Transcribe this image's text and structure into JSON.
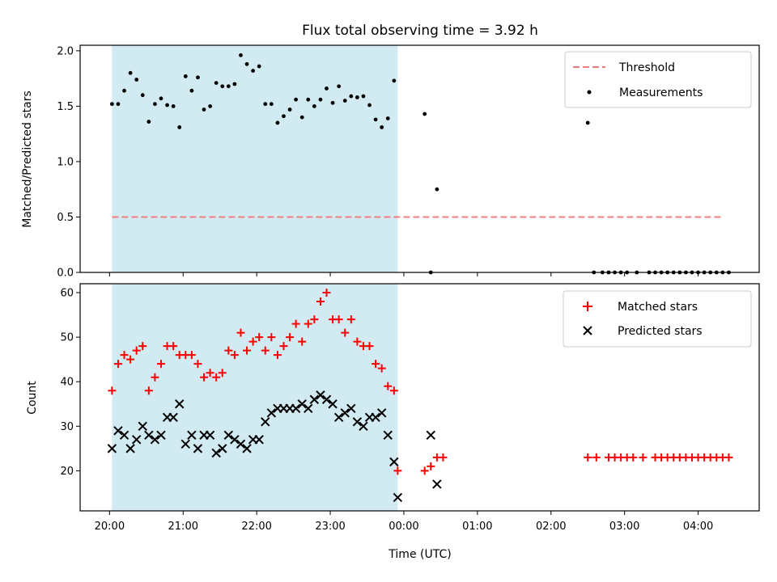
{
  "figure": {
    "title": "Flux total observing time = 3.92 h",
    "xlabel": "Time (UTC)"
  },
  "colors": {
    "shade": "#add8e6",
    "threshold": "#f08080",
    "measurement": "#000000",
    "matched": "#ff0000",
    "predicted": "#000000"
  },
  "chart_data": [
    {
      "type": "scatter",
      "ylabel": "Matched/Predicted stars",
      "xlim": [
        19.6,
        28.83
      ],
      "ylim": [
        0,
        2.05
      ],
      "xticks": [
        20,
        21,
        22,
        23,
        24,
        25,
        26,
        27,
        28
      ],
      "yticks": [
        {
          "v": 0,
          "label": "0.0"
        },
        {
          "v": 0.5,
          "label": "0.5"
        },
        {
          "v": 1.0,
          "label": "1.0"
        },
        {
          "v": 1.5,
          "label": "1.5"
        },
        {
          "v": 2.0,
          "label": "2.0"
        }
      ],
      "shaded_interval": [
        "20:02",
        "23:55"
      ],
      "legend": {
        "placement": "upper right",
        "entries": [
          "Threshold",
          "Measurements"
        ]
      },
      "series": [
        {
          "name": "Threshold",
          "kind": "dashed-line",
          "x": [
            "20:02",
            "04:20"
          ],
          "y": [
            0.5,
            0.5
          ]
        },
        {
          "name": "Measurements",
          "kind": "points",
          "x": [
            "20:02",
            "20:07",
            "20:12",
            "20:17",
            "20:22",
            "20:27",
            "20:32",
            "20:37",
            "20:42",
            "20:47",
            "20:52",
            "20:57",
            "21:02",
            "21:07",
            "21:12",
            "21:17",
            "21:22",
            "21:27",
            "21:32",
            "21:37",
            "21:42",
            "21:47",
            "21:52",
            "21:57",
            "22:02",
            "22:07",
            "22:12",
            "22:17",
            "22:22",
            "22:27",
            "22:32",
            "22:37",
            "22:42",
            "22:47",
            "22:52",
            "22:57",
            "23:02",
            "23:07",
            "23:12",
            "23:17",
            "23:22",
            "23:27",
            "23:32",
            "23:37",
            "23:42",
            "23:47",
            "23:52",
            "00:17",
            "00:22",
            "00:27",
            "02:30",
            "02:35",
            "02:42",
            "02:47",
            "02:52",
            "02:57",
            "03:02",
            "03:10",
            "03:20",
            "03:25",
            "03:30",
            "03:35",
            "03:40",
            "03:45",
            "03:50",
            "03:55",
            "04:00",
            "04:05",
            "04:10",
            "04:15",
            "04:20",
            "04:25"
          ],
          "y": [
            1.52,
            1.52,
            1.64,
            1.8,
            1.74,
            1.6,
            1.36,
            1.52,
            1.57,
            1.51,
            1.5,
            1.31,
            1.77,
            1.64,
            1.76,
            1.47,
            1.5,
            1.71,
            1.68,
            1.68,
            1.7,
            1.96,
            1.88,
            1.82,
            1.86,
            1.52,
            1.52,
            1.35,
            1.41,
            1.47,
            1.56,
            1.4,
            1.56,
            1.5,
            1.56,
            1.66,
            1.53,
            1.68,
            1.55,
            1.59,
            1.58,
            1.59,
            1.51,
            1.38,
            1.31,
            1.39,
            1.73,
            1.43,
            0.0,
            0.75,
            1.35,
            0,
            0,
            0,
            0,
            0,
            0,
            0,
            0,
            0,
            0,
            0,
            0,
            0,
            0,
            0,
            0,
            0,
            0,
            0,
            0,
            0
          ]
        }
      ]
    },
    {
      "type": "scatter",
      "ylabel": "Count",
      "xlim": [
        19.6,
        28.83
      ],
      "ylim": [
        11,
        62
      ],
      "xticks": [
        20,
        21,
        22,
        23,
        24,
        25,
        26,
        27,
        28
      ],
      "xtick_labels": [
        "20:00",
        "21:00",
        "22:00",
        "23:00",
        "00:00",
        "01:00",
        "02:00",
        "03:00",
        "04:00"
      ],
      "yticks": [
        {
          "v": 20,
          "label": "20"
        },
        {
          "v": 30,
          "label": "30"
        },
        {
          "v": 40,
          "label": "40"
        },
        {
          "v": 50,
          "label": "50"
        },
        {
          "v": 60,
          "label": "60"
        }
      ],
      "shaded_interval": [
        "20:02",
        "23:55"
      ],
      "legend": {
        "placement": "upper right",
        "entries": [
          "Matched stars",
          "Predicted stars"
        ]
      },
      "series": [
        {
          "name": "Matched stars",
          "marker": "plus",
          "x": [
            "20:02",
            "20:07",
            "20:12",
            "20:17",
            "20:22",
            "20:27",
            "20:32",
            "20:37",
            "20:42",
            "20:47",
            "20:52",
            "20:57",
            "21:02",
            "21:07",
            "21:12",
            "21:17",
            "21:22",
            "21:27",
            "21:32",
            "21:37",
            "21:42",
            "21:47",
            "21:52",
            "21:57",
            "22:02",
            "22:07",
            "22:12",
            "22:17",
            "22:22",
            "22:27",
            "22:32",
            "22:37",
            "22:42",
            "22:47",
            "22:52",
            "22:57",
            "23:02",
            "23:07",
            "23:12",
            "23:17",
            "23:22",
            "23:27",
            "23:32",
            "23:37",
            "23:42",
            "23:47",
            "23:52",
            "23:55",
            "00:17",
            "00:22",
            "00:27",
            "00:32",
            "02:30",
            "02:37",
            "02:47",
            "02:52",
            "02:57",
            "03:02",
            "03:07",
            "03:15",
            "03:25",
            "03:30",
            "03:35",
            "03:40",
            "03:45",
            "03:50",
            "03:55",
            "04:00",
            "04:05",
            "04:10",
            "04:15",
            "04:20",
            "04:25"
          ],
          "y": [
            38,
            44,
            46,
            45,
            47,
            48,
            38,
            41,
            44,
            48,
            48,
            46,
            46,
            46,
            44,
            41,
            42,
            41,
            42,
            47,
            46,
            51,
            47,
            49,
            50,
            47,
            50,
            46,
            48,
            50,
            53,
            49,
            53,
            54,
            58,
            60,
            54,
            54,
            51,
            54,
            49,
            48,
            48,
            44,
            43,
            39,
            38,
            20,
            20,
            21,
            23,
            23,
            23,
            23,
            23,
            23,
            23,
            23,
            23,
            23,
            23,
            23,
            23,
            23,
            23,
            23,
            23,
            23,
            23,
            23,
            23,
            23,
            23
          ]
        },
        {
          "name": "Predicted stars",
          "marker": "x",
          "x": [
            "20:02",
            "20:07",
            "20:12",
            "20:17",
            "20:22",
            "20:27",
            "20:32",
            "20:37",
            "20:42",
            "20:47",
            "20:52",
            "20:57",
            "21:02",
            "21:07",
            "21:12",
            "21:17",
            "21:22",
            "21:27",
            "21:32",
            "21:37",
            "21:42",
            "21:47",
            "21:52",
            "21:57",
            "22:02",
            "22:07",
            "22:12",
            "22:17",
            "22:22",
            "22:27",
            "22:32",
            "22:37",
            "22:42",
            "22:47",
            "22:52",
            "22:57",
            "23:02",
            "23:07",
            "23:12",
            "23:17",
            "23:22",
            "23:27",
            "23:32",
            "23:37",
            "23:42",
            "23:47",
            "23:52",
            "23:55",
            "00:22",
            "00:27"
          ],
          "y": [
            25,
            29,
            28,
            25,
            27,
            30,
            28,
            27,
            28,
            32,
            32,
            35,
            26,
            28,
            25,
            28,
            28,
            24,
            25,
            28,
            27,
            26,
            25,
            27,
            27,
            31,
            33,
            34,
            34,
            34,
            34,
            35,
            34,
            36,
            37,
            36,
            35,
            32,
            33,
            34,
            31,
            30,
            32,
            32,
            33,
            28,
            22,
            14,
            28,
            17
          ]
        }
      ]
    }
  ]
}
